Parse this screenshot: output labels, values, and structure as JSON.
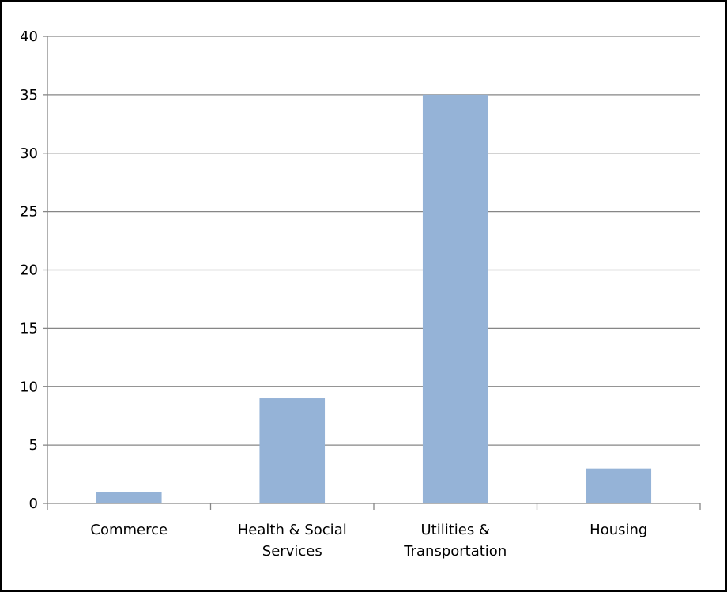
{
  "chart_data": {
    "type": "bar",
    "categories": [
      "Commerce",
      "Health & Social Services",
      "Utilities & Transportation",
      "Housing"
    ],
    "category_label_lines": [
      [
        "Commerce"
      ],
      [
        "Health & Social",
        "Services"
      ],
      [
        "Utilities &",
        "Transportation"
      ],
      [
        "Housing"
      ]
    ],
    "values": [
      1,
      9,
      35,
      3
    ],
    "title": "",
    "xlabel": "",
    "ylabel": "",
    "ylim": [
      0,
      40
    ],
    "yticks": [
      0,
      5,
      10,
      15,
      20,
      25,
      30,
      35,
      40
    ],
    "grid": true,
    "legend": "none",
    "bar_color": "#95B3D7",
    "gridline_color": "#868686"
  }
}
